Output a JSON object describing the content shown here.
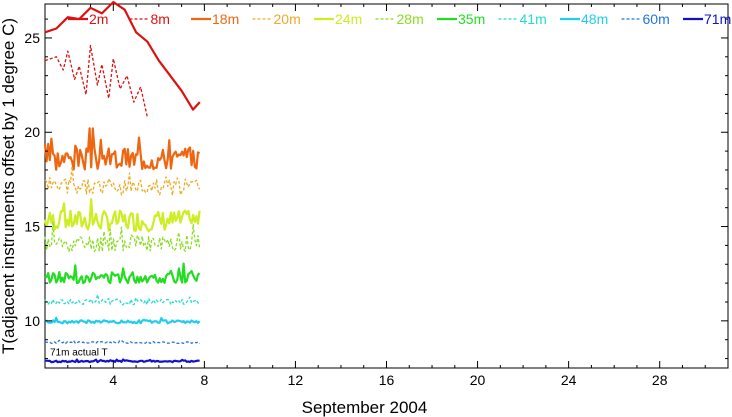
{
  "chart_data": {
    "type": "line",
    "title": "",
    "xlabel": "September 2004",
    "ylabel": "T(adjacent instruments offset by 1 degree C)",
    "xlim": [
      1,
      31
    ],
    "ylim": [
      7.5,
      26.8
    ],
    "xticks": [
      4,
      8,
      12,
      16,
      20,
      24,
      28
    ],
    "yticks": [
      10,
      15,
      20,
      25
    ],
    "grid": false,
    "legend_position": "top",
    "annotation": "71m actual T",
    "series": [
      {
        "name": "2m",
        "color": "#dd1111",
        "dash": "solid",
        "width": 2.2,
        "x_end": 5.5,
        "points": [
          [
            1,
            25.3
          ],
          [
            1.5,
            25.5
          ],
          [
            2,
            26.1
          ],
          [
            2.5,
            26.0
          ],
          [
            3,
            26.6
          ],
          [
            3.5,
            26.3
          ],
          [
            4,
            26.9
          ],
          [
            4.5,
            26.5
          ],
          [
            5,
            25.3
          ],
          [
            5.5,
            24.8
          ],
          [
            6,
            23.8
          ],
          [
            6.5,
            23.0
          ],
          [
            7,
            22.2
          ],
          [
            7.5,
            21.2
          ],
          [
            7.8,
            21.6
          ]
        ]
      },
      {
        "name": "8m",
        "color": "#dd1111",
        "dash": "dash",
        "width": 1.3,
        "x_end": 5.6,
        "points": [
          [
            1,
            23.8
          ],
          [
            1.5,
            24.0
          ],
          [
            1.8,
            23.3
          ],
          [
            2,
            24.3
          ],
          [
            2.3,
            22.8
          ],
          [
            2.5,
            23.5
          ],
          [
            2.8,
            22.0
          ],
          [
            3,
            24.6
          ],
          [
            3.3,
            22.5
          ],
          [
            3.5,
            23.6
          ],
          [
            3.8,
            21.8
          ],
          [
            4,
            23.9
          ],
          [
            4.3,
            22.3
          ],
          [
            4.6,
            23.0
          ],
          [
            4.9,
            21.6
          ],
          [
            5.2,
            22.4
          ],
          [
            5.5,
            20.8
          ]
        ]
      },
      {
        "name": "18m",
        "color": "#ee6611",
        "dash": "solid",
        "width": 2.2,
        "base": 18.6,
        "amp": 0.6,
        "seed": 3
      },
      {
        "name": "20m",
        "color": "#eeaa22",
        "dash": "dash",
        "width": 1.3,
        "base": 17.1,
        "amp": 0.45,
        "seed": 5
      },
      {
        "name": "24m",
        "color": "#ccee22",
        "dash": "solid",
        "width": 2.2,
        "base": 15.3,
        "amp": 0.55,
        "seed": 7
      },
      {
        "name": "28m",
        "color": "#88dd22",
        "dash": "dash",
        "width": 1.3,
        "base": 14.1,
        "amp": 0.45,
        "seed": 11
      },
      {
        "name": "35m",
        "color": "#22dd22",
        "dash": "solid",
        "width": 2.2,
        "base": 12.3,
        "amp": 0.3,
        "seed": 13
      },
      {
        "name": "41m",
        "color": "#22ddcc",
        "dash": "dash",
        "width": 1.3,
        "base": 11.0,
        "amp": 0.15,
        "seed": 17
      },
      {
        "name": "48m",
        "color": "#22ccee",
        "dash": "solid",
        "width": 2.2,
        "base": 9.95,
        "amp": 0.08,
        "seed": 19
      },
      {
        "name": "60m",
        "color": "#2277dd",
        "dash": "dash",
        "width": 1.3,
        "base": 8.85,
        "amp": 0.05,
        "seed": 23
      },
      {
        "name": "71m",
        "color": "#1111cc",
        "dash": "solid",
        "width": 2.2,
        "base": 7.85,
        "amp": 0.04,
        "seed": 29
      }
    ]
  }
}
